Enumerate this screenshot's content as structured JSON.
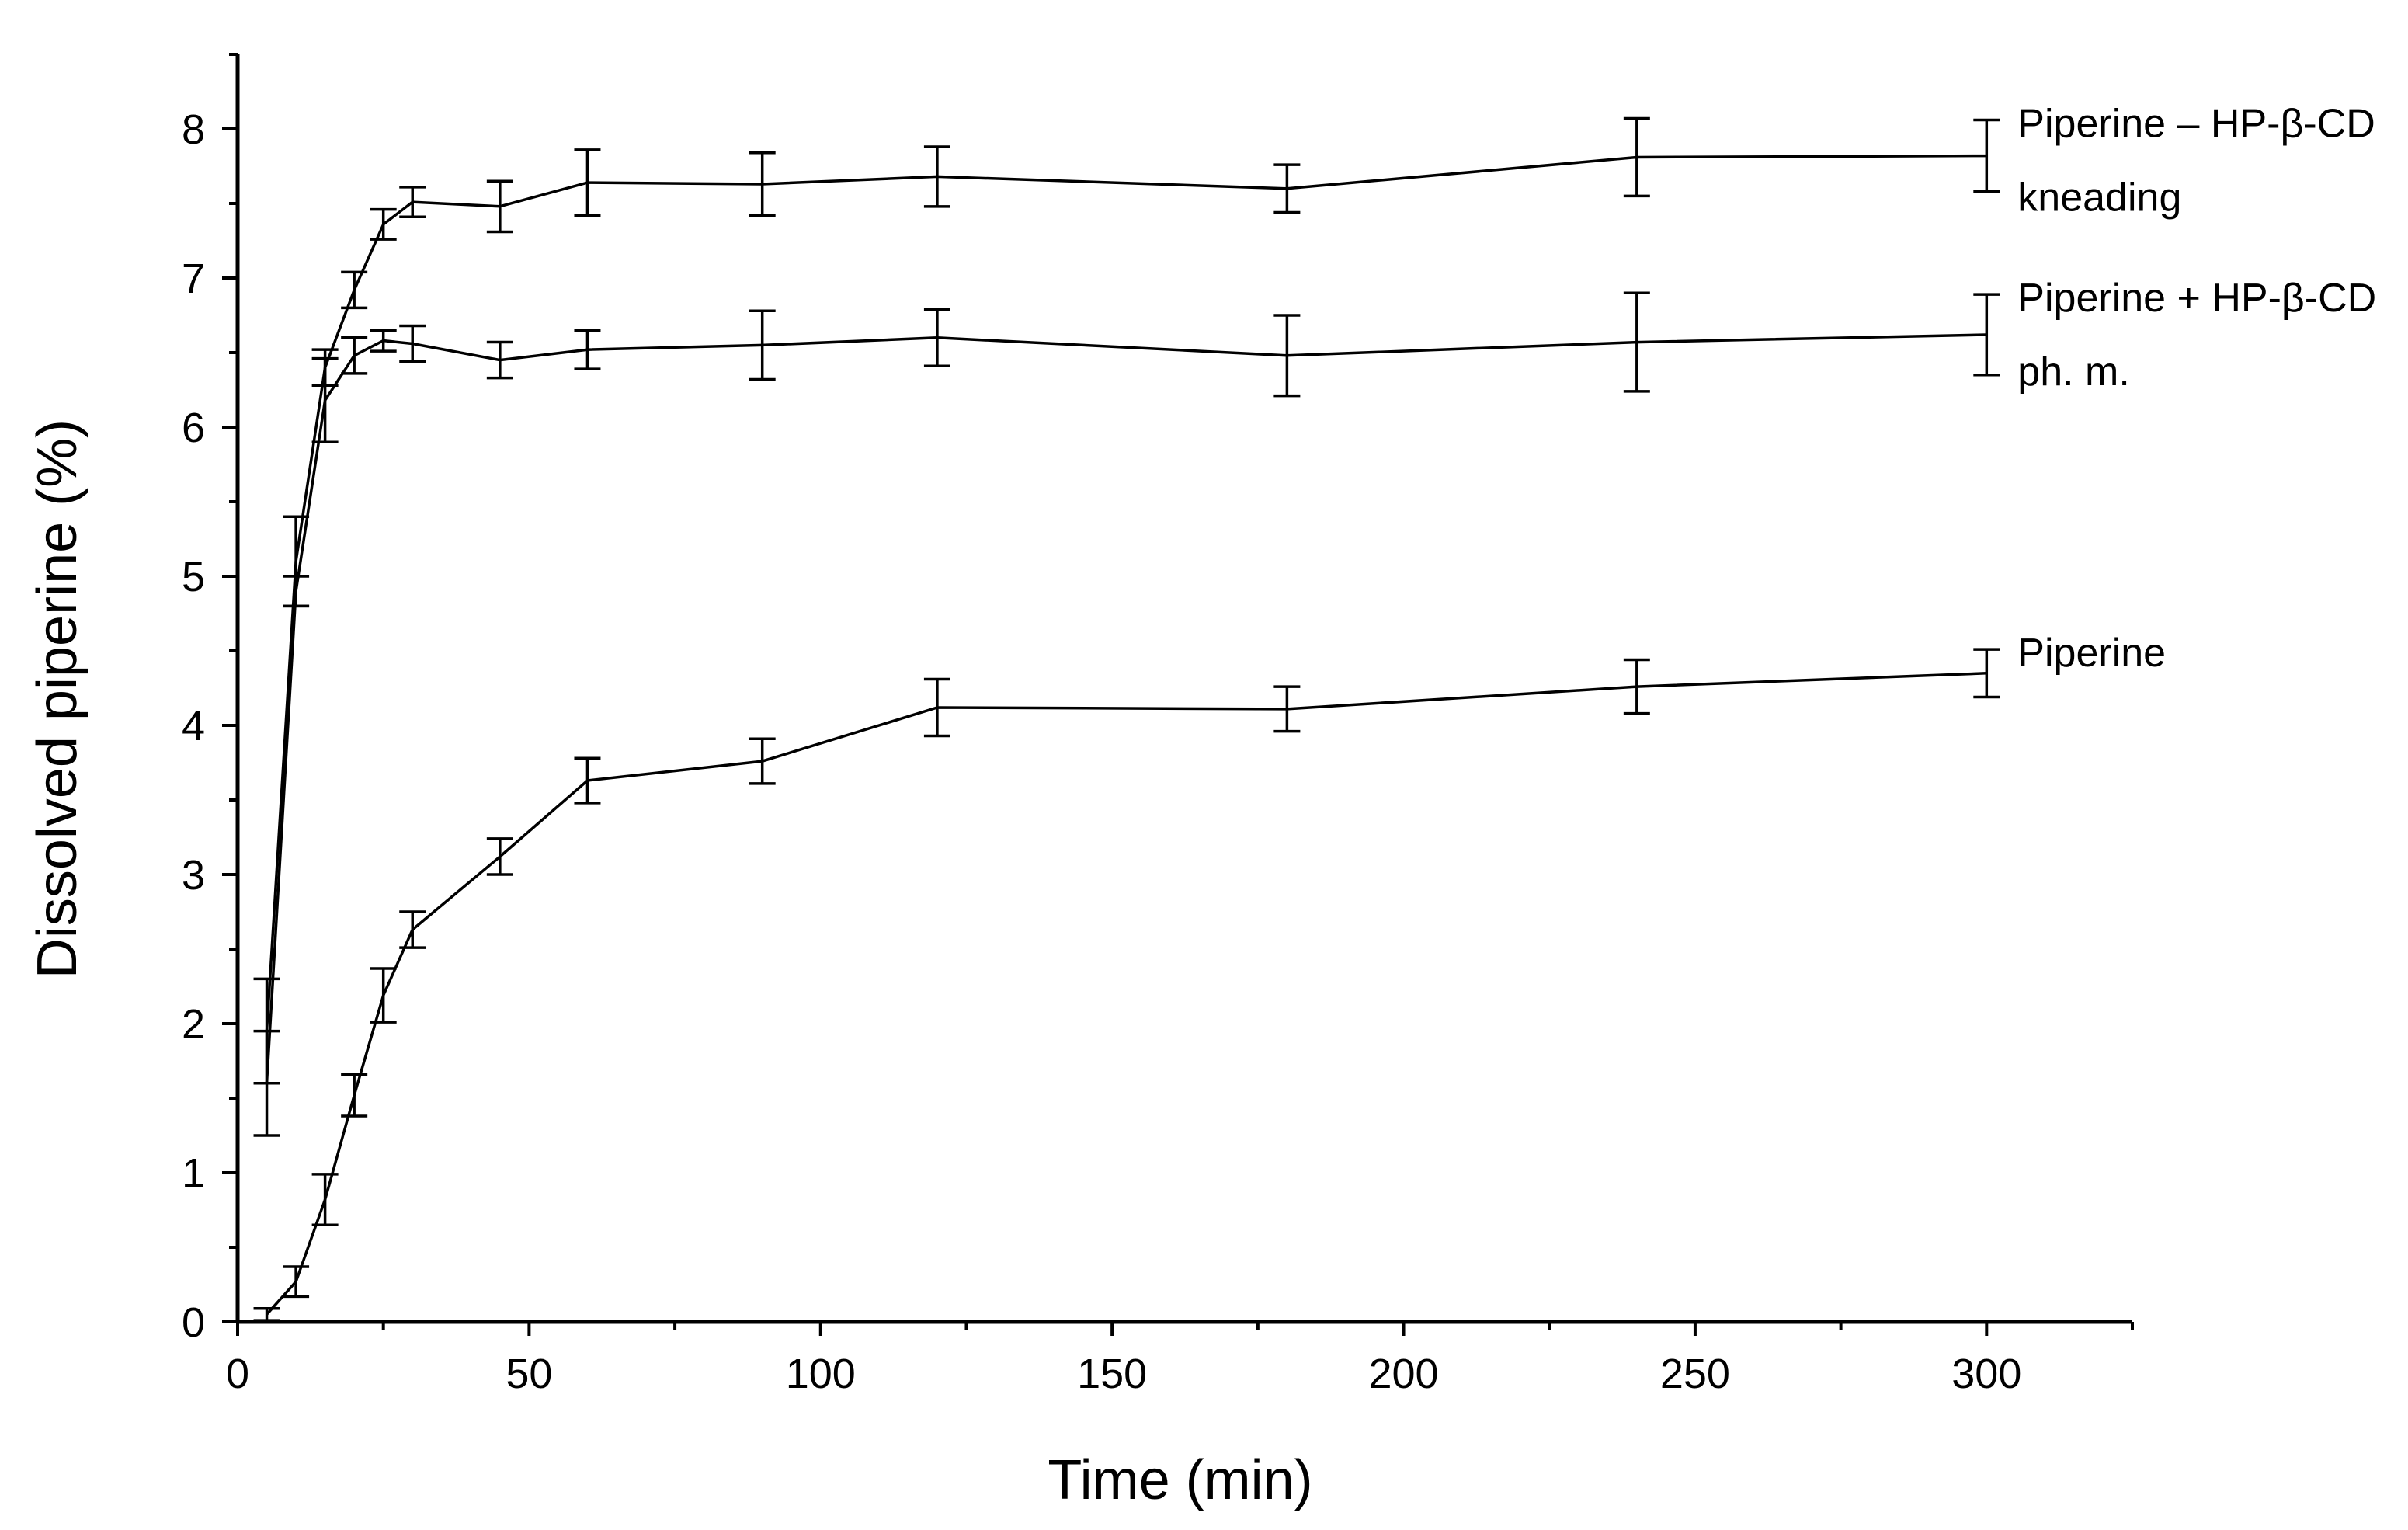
{
  "chart_data": {
    "type": "line",
    "title": "",
    "xlabel": "Time (min)",
    "ylabel": "Dissolved piperine (%)",
    "xlim": [
      0,
      325
    ],
    "ylim": [
      0,
      8.5
    ],
    "xticks": [
      0,
      50,
      100,
      150,
      200,
      250,
      300
    ],
    "xticks_minor": [
      25,
      75,
      125,
      175,
      225,
      275,
      325
    ],
    "yticks": [
      0,
      1,
      2,
      3,
      4,
      5,
      6,
      7,
      8
    ],
    "yticks_minor": [
      0.5,
      1.5,
      2.5,
      3.5,
      4.5,
      5.5,
      6.5,
      7.5,
      8.5
    ],
    "grid": false,
    "legend": "inline labels at right end of each series",
    "series": [
      {
        "name": "kneading",
        "label_lines": [
          "Piperine – HP-β-CD",
          "kneading"
        ],
        "x": [
          5,
          10,
          15,
          20,
          25,
          30,
          45,
          60,
          90,
          120,
          180,
          240,
          300
        ],
        "y": [
          1.95,
          5.1,
          6.4,
          6.92,
          7.36,
          7.51,
          7.48,
          7.64,
          7.63,
          7.68,
          7.6,
          7.81,
          7.82
        ],
        "err": [
          0.35,
          0.3,
          0.12,
          0.12,
          0.1,
          0.1,
          0.17,
          0.22,
          0.21,
          0.2,
          0.16,
          0.26,
          0.24
        ]
      },
      {
        "name": "physical mixture",
        "label_lines": [
          "Piperine + HP-β-CD",
          "ph. m."
        ],
        "x": [
          5,
          10,
          15,
          20,
          25,
          30,
          45,
          60,
          90,
          120,
          180,
          240,
          300
        ],
        "y": [
          1.6,
          4.9,
          6.18,
          6.48,
          6.58,
          6.56,
          6.45,
          6.52,
          6.55,
          6.6,
          6.48,
          6.57,
          6.62
        ],
        "err": [
          0.35,
          0.1,
          0.28,
          0.12,
          0.07,
          0.12,
          0.12,
          0.13,
          0.23,
          0.19,
          0.27,
          0.33,
          0.27
        ]
      },
      {
        "name": "piperine",
        "label_lines": [
          "Piperine"
        ],
        "x": [
          5,
          10,
          15,
          20,
          25,
          30,
          45,
          60,
          90,
          120,
          180,
          240,
          300
        ],
        "y": [
          0.05,
          0.27,
          0.82,
          1.52,
          2.19,
          2.63,
          3.12,
          3.63,
          3.76,
          4.12,
          4.11,
          4.26,
          4.35
        ],
        "err": [
          0.04,
          0.1,
          0.17,
          0.14,
          0.18,
          0.12,
          0.12,
          0.15,
          0.15,
          0.19,
          0.15,
          0.18,
          0.16
        ]
      }
    ]
  }
}
